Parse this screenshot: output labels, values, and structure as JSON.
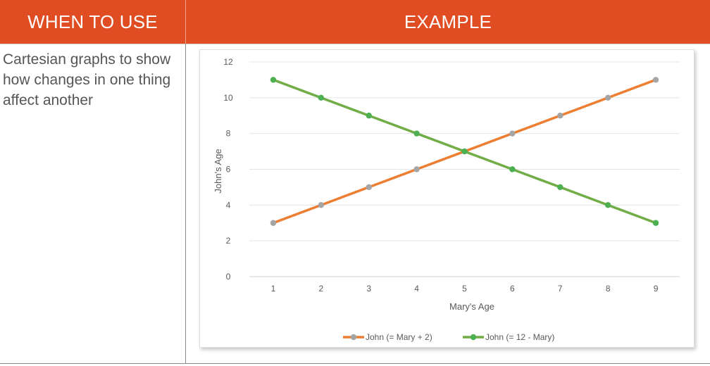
{
  "table": {
    "headers": [
      "WHEN TO USE",
      "EXAMPLE"
    ],
    "when_to_use": "Cartesian graphs to show how changes in one thing affect another"
  },
  "colors": {
    "header_bg": "#e14d22",
    "series1": "#ed7d31",
    "series2": "#70ad47",
    "marker1": "#a5a5a5",
    "marker2": "#4caf50"
  },
  "chart_data": {
    "type": "line",
    "x": [
      1,
      2,
      3,
      4,
      5,
      6,
      7,
      8,
      9
    ],
    "series": [
      {
        "name": "John (= Mary + 2)",
        "values": [
          3,
          4,
          5,
          6,
          7,
          8,
          9,
          10,
          11
        ]
      },
      {
        "name": "John (= 12 - Mary)",
        "values": [
          11,
          10,
          9,
          8,
          7,
          6,
          5,
          4,
          3
        ]
      }
    ],
    "xlabel": "Mary's Age",
    "ylabel": "John's Age",
    "ylim": [
      0,
      12
    ],
    "yticks": [
      0,
      2,
      4,
      6,
      8,
      10,
      12
    ],
    "grid": "horizontal",
    "legend": "bottom"
  }
}
